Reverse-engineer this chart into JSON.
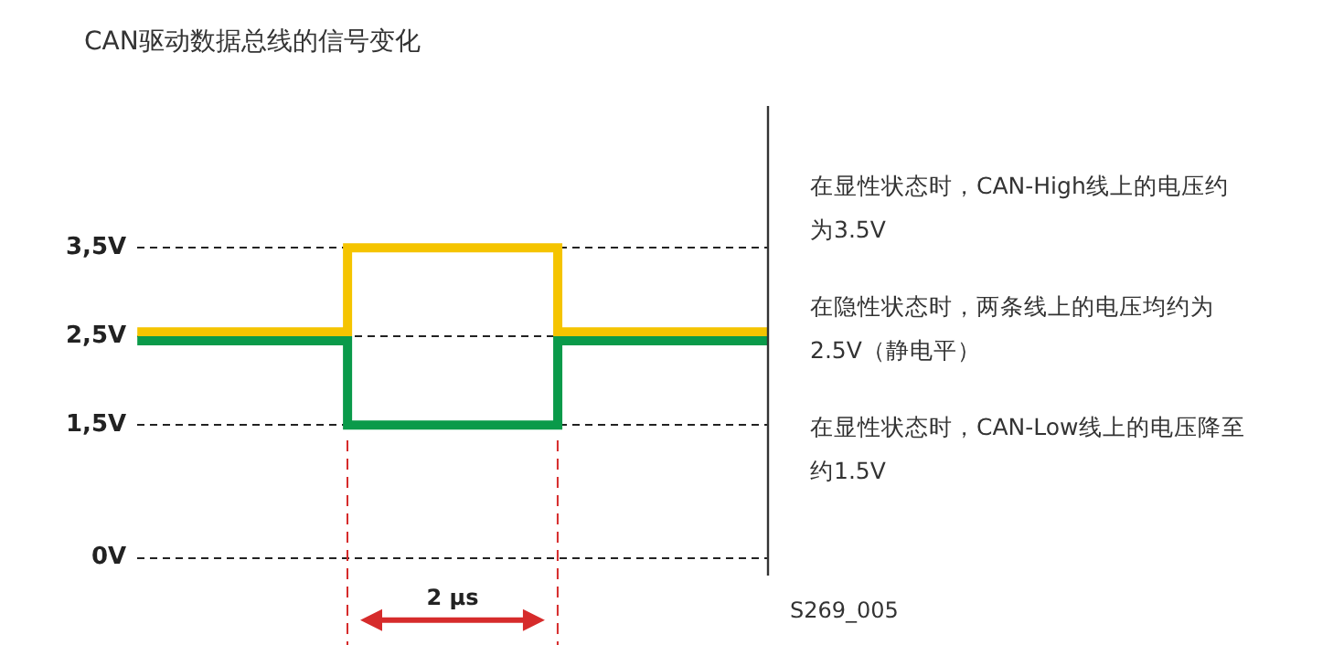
{
  "chart_data": {
    "type": "step",
    "title": "CAN驱动数据总线的信号变化",
    "categories": [
      null,
      null,
      null,
      null
    ],
    "ylim": [
      -0.2,
      5.1
    ],
    "yticks": [
      {
        "value": 0,
        "label": "0V"
      },
      {
        "value": 1.5,
        "label": "1,5V"
      },
      {
        "value": 2.5,
        "label": "2,5V"
      },
      {
        "value": 3.5,
        "label": "3,5V"
      }
    ],
    "tick_labels": "y",
    "grid": "y",
    "legend": false,
    "marker": "none",
    "line_style": "solid",
    "series": [
      {
        "color": "#0a9a4a",
        "values": [
          2.45,
          1.5,
          2.45,
          2.45
        ]
      },
      {
        "color": "#f5c400",
        "values": [
          2.55,
          3.5,
          2.55,
          2.55
        ]
      }
    ],
    "annotations": [
      "在显性状态时，CAN-High线上的电压约为3.5V",
      "在隐性状态时，两条线上的电压均约为2.5V（静电平）",
      "在显性状态时，CAN-Low线上的电压降至约1.5V",
      "2 μs",
      "S269_005"
    ]
  }
}
